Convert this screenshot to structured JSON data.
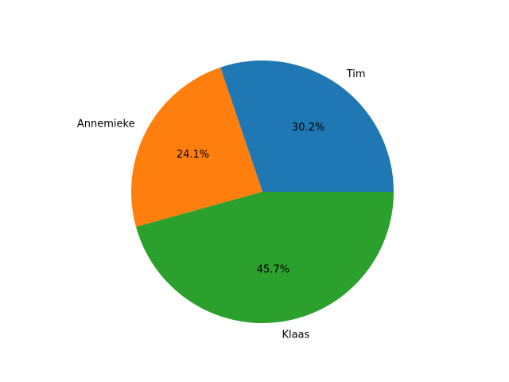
{
  "chart_data": {
    "type": "pie",
    "title": "",
    "categories": [
      "Tim",
      "Annemieke",
      "Klaas"
    ],
    "values": [
      30.2,
      24.1,
      45.7
    ],
    "percent_labels": [
      "30.2%",
      "24.1%",
      "45.7%"
    ],
    "colors": [
      "#1f77b4",
      "#ff7f0e",
      "#2ca02c"
    ],
    "start_angle_deg": 0,
    "direction": "counterclockwise",
    "legend": "none"
  }
}
